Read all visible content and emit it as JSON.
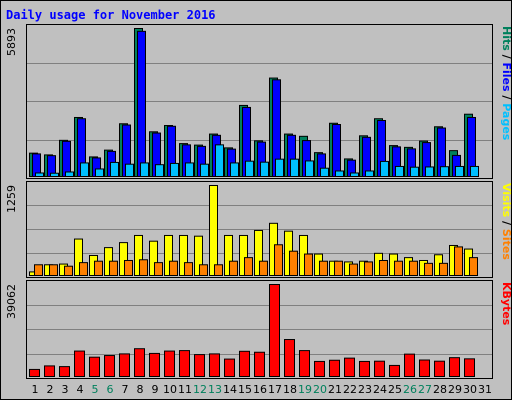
{
  "chart_data": {
    "type": "bar",
    "title": "Daily usage for November 2016",
    "days": [
      "1",
      "2",
      "3",
      "4",
      "5",
      "6",
      "7",
      "8",
      "9",
      "10",
      "11",
      "12",
      "13",
      "14",
      "15",
      "16",
      "17",
      "18",
      "19",
      "20",
      "21",
      "22",
      "23",
      "24",
      "25",
      "26",
      "27",
      "28",
      "29",
      "30",
      "31"
    ],
    "weekend_days": [
      "5",
      "6",
      "12",
      "13",
      "19",
      "20",
      "26",
      "27"
    ],
    "grid": true,
    "panels": [
      {
        "id": "hits_files_pages",
        "ymax_label": "5893",
        "ymax": 5893,
        "ylabel_parts": [
          {
            "text": "Hits",
            "color": "#00805c"
          },
          {
            "text": " / ",
            "color": "#000000"
          },
          {
            "text": "Files",
            "color": "#0000ff"
          },
          {
            "text": " / ",
            "color": "#000000"
          },
          {
            "text": "Pages",
            "color": "#00c0ff"
          }
        ],
        "series": [
          {
            "name": "Hits",
            "color": "#00805c",
            "values": [
              930,
              860,
              1440,
              2350,
              780,
              1050,
              2100,
              5893,
              1780,
              2030,
              1310,
              1250,
              1690,
              1140,
              2830,
              1420,
              3920,
              1690,
              1600,
              950,
              2120,
              700,
              1620,
              2300,
              1230,
              1160,
              1410,
              1980,
              1030,
              2480
            ]
          },
          {
            "name": "Files",
            "color": "#0000ff",
            "values": [
              900,
              830,
              1400,
              2300,
              740,
              1000,
              2050,
              5780,
              1730,
              2000,
              1260,
              1200,
              1640,
              1090,
              2750,
              1370,
              3850,
              1640,
              1430,
              900,
              2070,
              650,
              1560,
              2230,
              1180,
              1100,
              1350,
              1930,
              840,
              2350
            ]
          },
          {
            "name": "Pages",
            "color": "#00c0ff",
            "values": [
              140,
              130,
              180,
              540,
              300,
              560,
              490,
              540,
              470,
              520,
              540,
              490,
              1260,
              540,
              610,
              570,
              690,
              690,
              620,
              330,
              220,
              140,
              220,
              600,
              400,
              370,
              380,
              390,
              400,
              400
            ]
          }
        ]
      },
      {
        "id": "visits_sites",
        "ymax_label": "1259",
        "ymax": 1259,
        "ylabel_parts": [
          {
            "text": "Visits",
            "color": "#ffff00"
          },
          {
            "text": " / ",
            "color": "#000000"
          },
          {
            "text": "Sites",
            "color": "#ff8000"
          }
        ],
        "series": [
          {
            "name": "Visits",
            "color": "#ffff00",
            "values": [
              50,
              150,
              160,
              510,
              280,
              390,
              460,
              560,
              480,
              560,
              560,
              550,
              1259,
              560,
              560,
              630,
              730,
              620,
              560,
              300,
              200,
              190,
              200,
              310,
              300,
              250,
              210,
              290,
              420,
              370
            ]
          },
          {
            "name": "Sites",
            "color": "#ff8000",
            "values": [
              150,
              150,
              130,
              180,
              200,
              200,
              210,
              220,
              180,
              200,
              180,
              150,
              150,
              200,
              250,
              200,
              430,
              340,
              300,
              200,
              200,
              160,
              190,
              210,
              200,
              200,
              170,
              170,
              400,
              250
            ]
          }
        ]
      },
      {
        "id": "kbytes",
        "ymax_label": "39062",
        "ymax": 39062,
        "ylabel_parts": [
          {
            "text": "KBytes",
            "color": "#ff0000"
          }
        ],
        "series": [
          {
            "name": "KBytes",
            "color": "#ff0000",
            "values": [
              3000,
              4500,
              4200,
              10800,
              8200,
              8900,
              9600,
              11800,
              9800,
              10800,
              11000,
              9300,
              9600,
              7400,
              10700,
              10300,
              39062,
              15700,
              11000,
              6400,
              6900,
              7800,
              6400,
              6500,
              4700,
              9500,
              7000,
              6500,
              8000,
              7500
            ]
          }
        ]
      }
    ]
  }
}
